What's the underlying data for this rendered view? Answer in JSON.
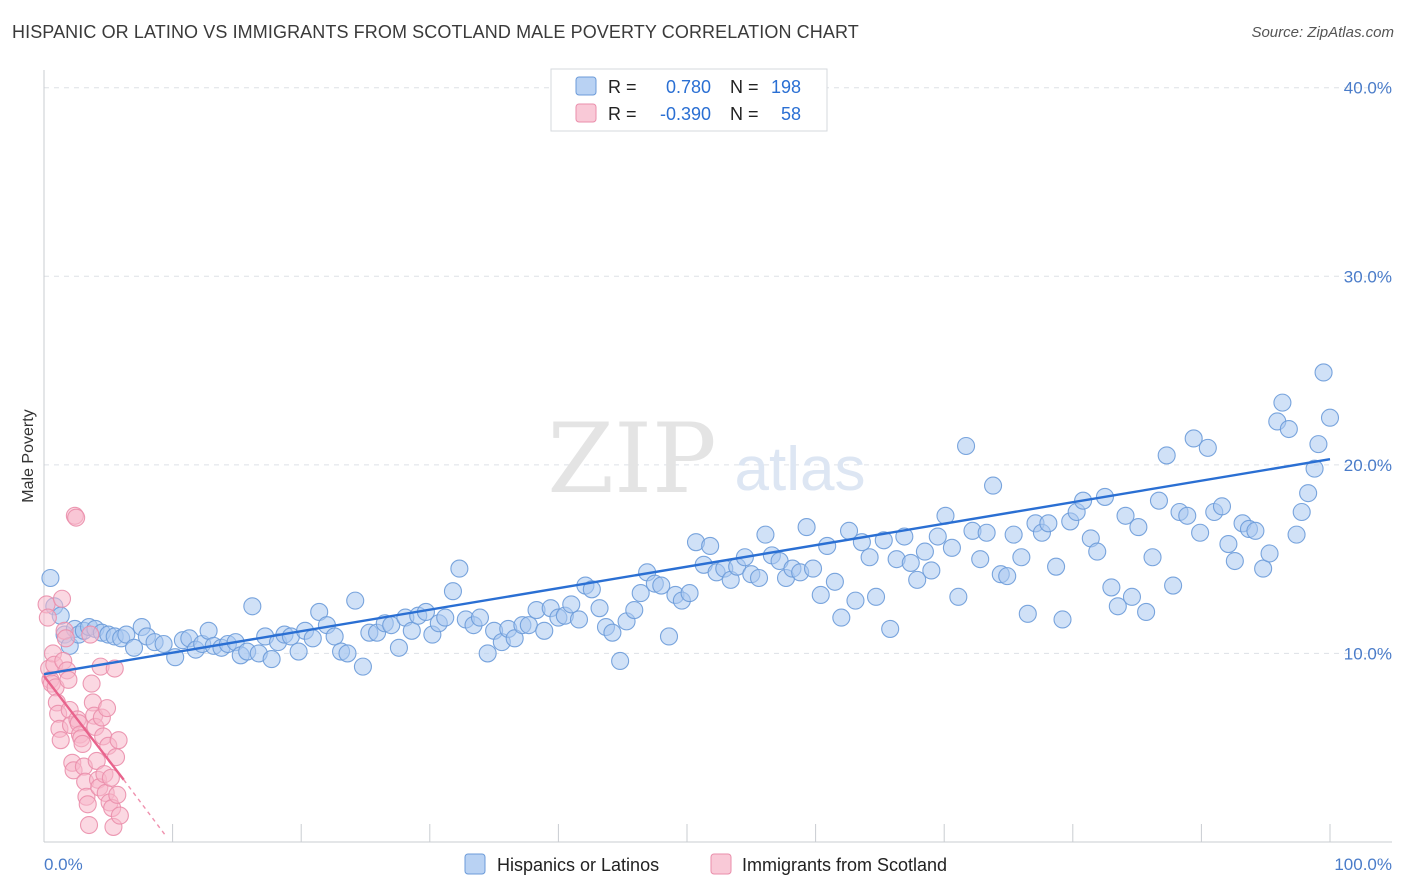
{
  "header": {
    "title": "HISPANIC OR LATINO VS IMMIGRANTS FROM SCOTLAND MALE POVERTY CORRELATION CHART",
    "source": "Source: ZipAtlas.com"
  },
  "watermark": {
    "zip": "ZIP",
    "atlas": "atlas"
  },
  "colors": {
    "blue_fill": "#a9c8f0",
    "blue_stroke": "#6c9bd9",
    "blue_line": "#2a6fd3",
    "pink_fill": "#f7b8ca",
    "pink_stroke": "#ea8eab",
    "pink_line": "#e8638c",
    "tick_label": "#4a7cc9",
    "grid": "#dde1e6"
  },
  "stats_box": {
    "rows": [
      {
        "r_label": "R =",
        "r_value": "0.780",
        "n_label": "N =",
        "n_value": "198"
      },
      {
        "r_label": "R =",
        "r_value": "-0.390",
        "n_label": "N =",
        "n_value": "58"
      }
    ]
  },
  "legend": {
    "items": [
      "Hispanics or Latinos",
      "Immigrants from Scotland"
    ]
  },
  "chart_data": {
    "type": "scatter",
    "title": "HISPANIC OR LATINO VS IMMIGRANTS FROM SCOTLAND MALE POVERTY CORRELATION CHART",
    "xlabel": "",
    "ylabel": "Male Poverty",
    "xlim": [
      0,
      100
    ],
    "ylim": [
      0,
      42
    ],
    "x_tick_labels": [
      "0.0%",
      "100.0%"
    ],
    "y_ticks": [
      10,
      20,
      30,
      40
    ],
    "y_tick_labels": [
      "10.0%",
      "20.0%",
      "30.0%",
      "40.0%"
    ],
    "series": [
      {
        "name": "Hispanics or Latinos",
        "r": 0.78,
        "n": 198,
        "trend": {
          "x": [
            0,
            100
          ],
          "y": [
            8.9,
            20.3
          ]
        },
        "points": [
          [
            0.5,
            14.0
          ],
          [
            0.8,
            12.5
          ],
          [
            1.3,
            12.0
          ],
          [
            1.6,
            11.0
          ],
          [
            2.0,
            10.4
          ],
          [
            2.4,
            11.3
          ],
          [
            2.7,
            11.0
          ],
          [
            3.1,
            11.2
          ],
          [
            3.5,
            11.4
          ],
          [
            4.0,
            11.3
          ],
          [
            4.5,
            11.1
          ],
          [
            5.0,
            11.0
          ],
          [
            5.5,
            10.9
          ],
          [
            6.0,
            10.8
          ],
          [
            6.4,
            11.0
          ],
          [
            7.0,
            10.3
          ],
          [
            7.6,
            11.4
          ],
          [
            8.0,
            10.9
          ],
          [
            8.6,
            10.6
          ],
          [
            9.3,
            10.5
          ],
          [
            10.2,
            9.8
          ],
          [
            10.8,
            10.7
          ],
          [
            11.3,
            10.8
          ],
          [
            11.8,
            10.2
          ],
          [
            12.3,
            10.5
          ],
          [
            12.8,
            11.2
          ],
          [
            13.2,
            10.4
          ],
          [
            13.8,
            10.3
          ],
          [
            14.3,
            10.5
          ],
          [
            14.9,
            10.6
          ],
          [
            15.3,
            9.9
          ],
          [
            15.8,
            10.1
          ],
          [
            16.2,
            12.5
          ],
          [
            16.7,
            10.0
          ],
          [
            17.2,
            10.9
          ],
          [
            17.7,
            9.7
          ],
          [
            18.2,
            10.6
          ],
          [
            18.7,
            11.0
          ],
          [
            19.2,
            10.9
          ],
          [
            19.8,
            10.1
          ],
          [
            20.3,
            11.2
          ],
          [
            20.9,
            10.8
          ],
          [
            21.4,
            12.2
          ],
          [
            22.0,
            11.5
          ],
          [
            22.6,
            10.9
          ],
          [
            23.1,
            10.1
          ],
          [
            23.6,
            10.0
          ],
          [
            24.2,
            12.8
          ],
          [
            24.8,
            9.3
          ],
          [
            25.3,
            11.1
          ],
          [
            25.9,
            11.1
          ],
          [
            26.5,
            11.6
          ],
          [
            27.0,
            11.5
          ],
          [
            27.6,
            10.3
          ],
          [
            28.1,
            11.9
          ],
          [
            28.6,
            11.2
          ],
          [
            29.1,
            12.0
          ],
          [
            29.7,
            12.2
          ],
          [
            30.2,
            11.0
          ],
          [
            30.7,
            11.6
          ],
          [
            31.2,
            11.9
          ],
          [
            31.8,
            13.3
          ],
          [
            32.3,
            14.5
          ],
          [
            32.8,
            11.8
          ],
          [
            33.4,
            11.5
          ],
          [
            33.9,
            11.9
          ],
          [
            34.5,
            10.0
          ],
          [
            35.0,
            11.2
          ],
          [
            35.6,
            10.6
          ],
          [
            36.1,
            11.3
          ],
          [
            36.6,
            10.8
          ],
          [
            37.2,
            11.5
          ],
          [
            37.7,
            11.5
          ],
          [
            38.3,
            12.3
          ],
          [
            38.9,
            11.2
          ],
          [
            39.4,
            12.4
          ],
          [
            40.0,
            11.9
          ],
          [
            40.5,
            12.0
          ],
          [
            41.0,
            12.6
          ],
          [
            41.6,
            11.8
          ],
          [
            42.1,
            13.6
          ],
          [
            42.6,
            13.4
          ],
          [
            43.2,
            12.4
          ],
          [
            43.7,
            11.4
          ],
          [
            44.2,
            11.1
          ],
          [
            44.8,
            9.6
          ],
          [
            45.3,
            11.7
          ],
          [
            45.9,
            12.3
          ],
          [
            46.4,
            13.2
          ],
          [
            46.9,
            14.3
          ],
          [
            47.5,
            13.7
          ],
          [
            48.0,
            13.6
          ],
          [
            48.6,
            10.9
          ],
          [
            49.1,
            13.1
          ],
          [
            49.6,
            12.8
          ],
          [
            50.2,
            13.2
          ],
          [
            50.7,
            15.9
          ],
          [
            51.3,
            14.7
          ],
          [
            51.8,
            15.7
          ],
          [
            52.3,
            14.3
          ],
          [
            52.9,
            14.5
          ],
          [
            53.4,
            13.9
          ],
          [
            53.9,
            14.6
          ],
          [
            54.5,
            15.1
          ],
          [
            55.0,
            14.2
          ],
          [
            55.6,
            14.0
          ],
          [
            56.1,
            16.3
          ],
          [
            56.6,
            15.2
          ],
          [
            57.2,
            14.9
          ],
          [
            57.7,
            14.0
          ],
          [
            58.2,
            14.5
          ],
          [
            58.8,
            14.3
          ],
          [
            59.3,
            16.7
          ],
          [
            59.8,
            14.5
          ],
          [
            60.4,
            13.1
          ],
          [
            60.9,
            15.7
          ],
          [
            61.5,
            13.8
          ],
          [
            62.0,
            11.9
          ],
          [
            62.6,
            16.5
          ],
          [
            63.1,
            12.8
          ],
          [
            63.6,
            15.9
          ],
          [
            64.2,
            15.1
          ],
          [
            64.7,
            13.0
          ],
          [
            65.3,
            16.0
          ],
          [
            65.8,
            11.3
          ],
          [
            66.3,
            15.0
          ],
          [
            66.9,
            16.2
          ],
          [
            67.4,
            14.8
          ],
          [
            67.9,
            13.9
          ],
          [
            68.5,
            15.4
          ],
          [
            69.0,
            14.4
          ],
          [
            69.5,
            16.2
          ],
          [
            70.1,
            17.3
          ],
          [
            70.6,
            15.6
          ],
          [
            71.1,
            13.0
          ],
          [
            71.7,
            21.0
          ],
          [
            72.2,
            16.5
          ],
          [
            72.8,
            15.0
          ],
          [
            73.3,
            16.4
          ],
          [
            73.8,
            18.9
          ],
          [
            74.4,
            14.2
          ],
          [
            74.9,
            14.1
          ],
          [
            75.4,
            16.3
          ],
          [
            76.0,
            15.1
          ],
          [
            76.5,
            12.1
          ],
          [
            77.1,
            16.9
          ],
          [
            77.6,
            16.4
          ],
          [
            78.1,
            16.9
          ],
          [
            78.7,
            14.6
          ],
          [
            79.2,
            11.8
          ],
          [
            79.8,
            17.0
          ],
          [
            80.3,
            17.5
          ],
          [
            80.8,
            18.1
          ],
          [
            81.4,
            16.1
          ],
          [
            81.9,
            15.4
          ],
          [
            82.5,
            18.3
          ],
          [
            83.0,
            13.5
          ],
          [
            83.5,
            12.5
          ],
          [
            84.1,
            17.3
          ],
          [
            84.6,
            13.0
          ],
          [
            85.1,
            16.7
          ],
          [
            85.7,
            12.2
          ],
          [
            86.2,
            15.1
          ],
          [
            86.7,
            18.1
          ],
          [
            87.3,
            20.5
          ],
          [
            87.8,
            13.6
          ],
          [
            88.3,
            17.5
          ],
          [
            88.9,
            17.3
          ],
          [
            89.4,
            21.4
          ],
          [
            89.9,
            16.4
          ],
          [
            90.5,
            20.9
          ],
          [
            91.0,
            17.5
          ],
          [
            91.6,
            17.8
          ],
          [
            92.1,
            15.8
          ],
          [
            92.6,
            14.9
          ],
          [
            93.2,
            16.9
          ],
          [
            93.7,
            16.6
          ],
          [
            94.2,
            16.5
          ],
          [
            94.8,
            14.5
          ],
          [
            95.3,
            15.3
          ],
          [
            95.9,
            22.3
          ],
          [
            96.3,
            23.3
          ],
          [
            96.8,
            21.9
          ],
          [
            97.4,
            16.3
          ],
          [
            97.8,
            17.5
          ],
          [
            98.3,
            18.5
          ],
          [
            98.8,
            19.8
          ],
          [
            99.1,
            21.1
          ],
          [
            99.5,
            24.9
          ],
          [
            100.0,
            22.5
          ]
        ]
      },
      {
        "name": "Immigrants from Scotland",
        "r": -0.39,
        "n": 58,
        "trend": {
          "x": [
            0,
            6.2
          ],
          "y": [
            8.8,
            3.3
          ]
        },
        "trend_extension": {
          "x": [
            6.2,
            9.5
          ],
          "y": [
            3.3,
            0.3
          ]
        },
        "points": [
          [
            0.2,
            12.6
          ],
          [
            0.3,
            11.9
          ],
          [
            0.4,
            9.2
          ],
          [
            0.5,
            8.6
          ],
          [
            0.6,
            8.4
          ],
          [
            0.7,
            10.0
          ],
          [
            0.8,
            9.4
          ],
          [
            0.9,
            8.2
          ],
          [
            1.0,
            7.4
          ],
          [
            1.1,
            6.8
          ],
          [
            1.2,
            6.0
          ],
          [
            1.3,
            5.4
          ],
          [
            1.4,
            12.9
          ],
          [
            1.5,
            9.6
          ],
          [
            1.6,
            11.2
          ],
          [
            1.7,
            10.8
          ],
          [
            1.8,
            9.1
          ],
          [
            1.9,
            8.6
          ],
          [
            2.0,
            7.0
          ],
          [
            2.1,
            6.2
          ],
          [
            2.2,
            4.2
          ],
          [
            2.3,
            3.8
          ],
          [
            2.4,
            17.3
          ],
          [
            2.5,
            17.2
          ],
          [
            2.6,
            6.5
          ],
          [
            2.7,
            6.3
          ],
          [
            2.8,
            5.7
          ],
          [
            2.9,
            5.5
          ],
          [
            3.0,
            5.2
          ],
          [
            3.1,
            4.0
          ],
          [
            3.2,
            3.2
          ],
          [
            3.3,
            2.4
          ],
          [
            3.4,
            2.0
          ],
          [
            3.5,
            0.9
          ],
          [
            3.6,
            11.0
          ],
          [
            3.7,
            8.4
          ],
          [
            3.8,
            7.4
          ],
          [
            3.9,
            6.7
          ],
          [
            4.0,
            6.1
          ],
          [
            4.1,
            4.3
          ],
          [
            4.2,
            3.3
          ],
          [
            4.3,
            2.9
          ],
          [
            4.4,
            9.3
          ],
          [
            4.5,
            6.6
          ],
          [
            4.6,
            5.6
          ],
          [
            4.7,
            3.6
          ],
          [
            4.8,
            2.6
          ],
          [
            4.9,
            7.1
          ],
          [
            5.0,
            5.1
          ],
          [
            5.1,
            2.1
          ],
          [
            5.2,
            3.4
          ],
          [
            5.3,
            1.8
          ],
          [
            5.4,
            0.8
          ],
          [
            5.5,
            9.2
          ],
          [
            5.6,
            4.5
          ],
          [
            5.7,
            2.5
          ],
          [
            5.8,
            5.4
          ],
          [
            5.9,
            1.4
          ]
        ]
      }
    ]
  }
}
